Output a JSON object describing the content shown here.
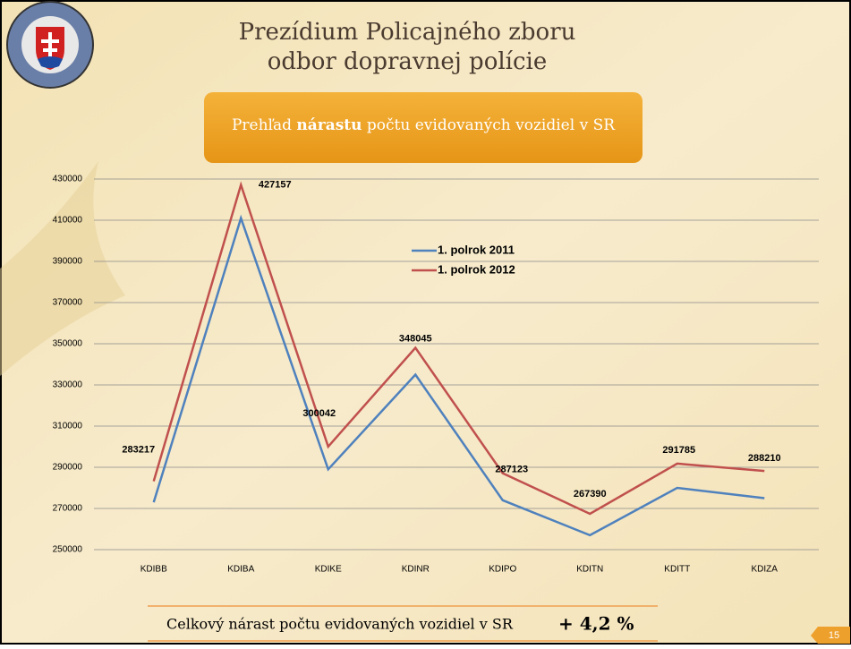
{
  "header": {
    "title_line1": "Prezídium Policajného zboru",
    "title_line2": "odbor dopravnej polície"
  },
  "banner": {
    "before": "Prehľad ",
    "bold": "nárastu",
    "after": " počtu evidovaných vozidiel v SR"
  },
  "chart_data": {
    "type": "line",
    "categories": [
      "KDIBB",
      "KDIBA",
      "KDIKE",
      "KDINR",
      "KDIPO",
      "KDITN",
      "KDITT",
      "KDIZA"
    ],
    "series": [
      {
        "name": "1. polrok 2011",
        "color": "#4f81bd",
        "values": [
          273000,
          411000,
          289000,
          335000,
          274000,
          257000,
          280000,
          275000
        ]
      },
      {
        "name": "1. polrok 2012",
        "color": "#c0504d",
        "values": [
          283217,
          427157,
          300042,
          348045,
          287123,
          267390,
          291785,
          288210
        ],
        "data_labels": true
      }
    ],
    "ylim": [
      250000,
      430000
    ],
    "yticks": [
      250000,
      270000,
      290000,
      310000,
      330000,
      350000,
      370000,
      390000,
      410000,
      430000
    ],
    "grid": true
  },
  "footer": {
    "text": "Celkový nárast  počtu evidovaných vozidiel v SR",
    "value": "+ 4,2 %",
    "page": "15"
  }
}
